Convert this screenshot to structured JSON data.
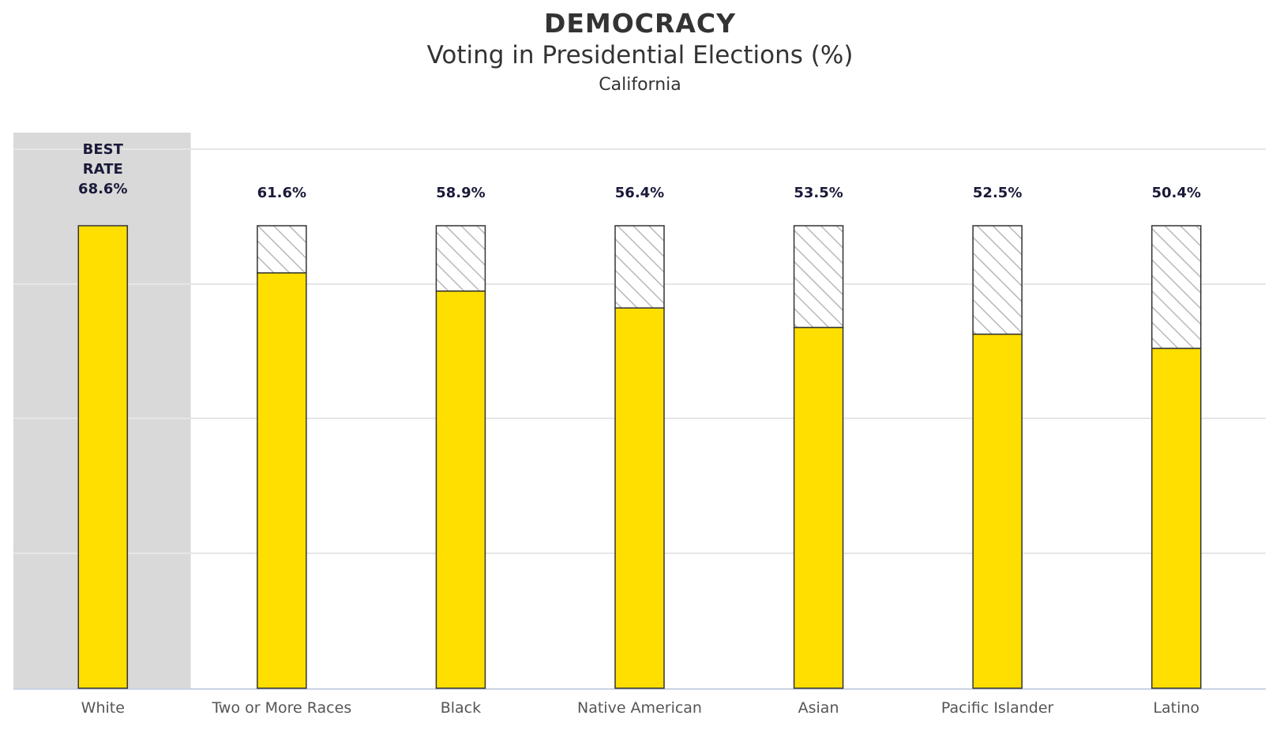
{
  "title": "DEMOCRACY",
  "subtitle": "Voting in Presidential Elections (%)",
  "region": "California",
  "colors": {
    "bar_fill": "#FFDF00",
    "bar_stroke": "#333333",
    "gap_hatch": "#b8b8b8",
    "best_band": "#d9d9d9",
    "grid": "#e6e6e6",
    "baseline": "#c9d3e6"
  },
  "chart_data": {
    "type": "bar",
    "title": "DEMOCRACY",
    "subtitle": "Voting in Presidential Elections (%)",
    "categories": [
      "White",
      "Two or More Races",
      "Black",
      "Native American",
      "Asian",
      "Pacific Islander",
      "Latino"
    ],
    "values": [
      68.6,
      61.6,
      58.9,
      56.4,
      53.5,
      52.5,
      50.4
    ],
    "data_labels": [
      "68.6%",
      "61.6%",
      "58.9%",
      "56.4%",
      "53.5%",
      "52.5%",
      "50.4%"
    ],
    "best_rate_prefix": [
      "BEST",
      "RATE"
    ],
    "best_index": 0,
    "gap_to_best_shown": true,
    "ylim": [
      0,
      68.6
    ],
    "grid": true,
    "xlabel": "",
    "ylabel": ""
  }
}
